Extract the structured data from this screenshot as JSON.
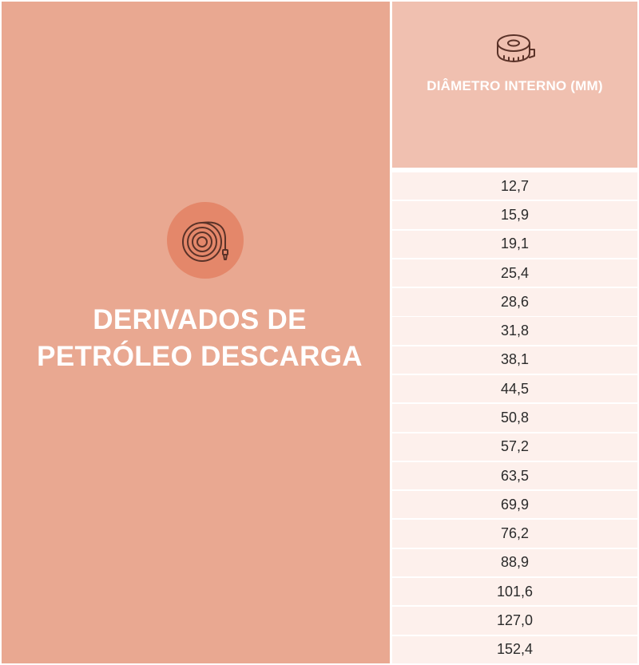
{
  "category": {
    "title_line1": "DERIVADOS DE",
    "title_line2": "PETRÓLEO DESCARGA",
    "icon": "hose-reel-icon"
  },
  "column": {
    "header": "DIÂMETRO INTERNO (MM)",
    "icon": "measuring-tape-icon",
    "values": [
      "12,7",
      "15,9",
      "19,1",
      "25,4",
      "28,6",
      "31,8",
      "38,1",
      "44,5",
      "50,8",
      "57,2",
      "63,5",
      "69,9",
      "76,2",
      "88,9",
      "101,6",
      "127,0",
      "152,4"
    ]
  },
  "colors": {
    "left_panel": "#e9a891",
    "badge": "#e4876a",
    "header_bg": "#f0c0b0",
    "row_bg": "#fdf0ec",
    "icon_stroke": "#5a3228"
  }
}
